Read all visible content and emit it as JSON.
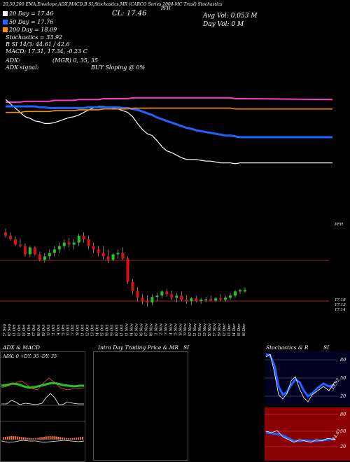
{
  "header": {
    "line1": "20,50,200  EMA,Envelope,ADX,MACD,B          SI,Stochastics,MR          (CARCO Series 2004-MC Trust) Stochastics",
    "ticker": "PFH",
    "close_label": "CL: 17.46",
    "avg_vol": "Avg Vol: 0.053  M",
    "day_vol": "Day Vol: 0  M",
    "ema20": "20  Day = 17.46",
    "ema50": "50  Day = 17.76",
    "ema200": "200  Day = 18.09",
    "stochastics": "Stochastics = 33.92",
    "rsi": "R          SI 14/3: 44.61 / 42.6",
    "macd": "MACD: 17.31, 17.34, -0.23  C",
    "adx": "ADX:",
    "mgr": "(MGR) 0,  35,  35",
    "adx_signal": "ADX  signal:",
    "buy_signal": "BUY Sloping @ 0%"
  },
  "colors": {
    "ema20": "#ffffff",
    "ema50": "#1e64ff",
    "ema200": "#ff8c00",
    "envelope": "#ff3cc8",
    "up": "#22c822",
    "down": "#dd1111",
    "level_line": "#aa2222"
  },
  "chart_data": [
    {
      "type": "line",
      "name": "moving-averages",
      "x": [
        "27 Sep",
        "30 Sep",
        "01 Oct",
        "02 Oct",
        "03 Oct",
        "04 Oct",
        "07 Oct",
        "08 Oct",
        "09 Oct",
        "10 Oct",
        "11 Oct",
        "14 Oct",
        "15 Oct",
        "16 Oct",
        "17 Oct",
        "18 Oct",
        "21 Oct",
        "22 Oct",
        "23 Oct",
        "24 Oct",
        "25 Oct",
        "28 Oct",
        "29 Oct",
        "30 Oct",
        "31 Oct",
        "01 Nov",
        "04 Nov",
        "05 Nov",
        "06 Nov",
        "07 Nov",
        "08 Nov",
        "11 Nov",
        "12 Nov",
        "13 Nov",
        "14 Nov",
        "15 Nov",
        "18 Nov",
        "19 Nov",
        "20 Nov",
        "21 Nov",
        "22 Nov",
        "25 Nov",
        "26 Nov",
        "27 Nov",
        "29 Nov",
        "02 Dec",
        "03 Dec",
        "04 Dec",
        "05 Dec",
        "06 Dec"
      ],
      "series": [
        {
          "name": "20 Day",
          "values": [
            18.2,
            18.15,
            18.1,
            18.05,
            18.0,
            17.98,
            17.95,
            17.94,
            17.92,
            17.92,
            17.93,
            17.95,
            17.97,
            17.99,
            18.0,
            18.02,
            18.05,
            18.08,
            18.1,
            18.12,
            18.12,
            18.11,
            18.1,
            18.09,
            18.07,
            18.05,
            18.0,
            17.92,
            17.85,
            17.8,
            17.78,
            17.72,
            17.65,
            17.6,
            17.58,
            17.55,
            17.52,
            17.5,
            17.5,
            17.5,
            17.49,
            17.48,
            17.48,
            17.47,
            17.46,
            17.46,
            17.46,
            17.45,
            17.46,
            17.46
          ]
        },
        {
          "name": "50 Day",
          "values": [
            18.12,
            18.12,
            18.12,
            18.12,
            18.12,
            18.12,
            18.12,
            18.11,
            18.11,
            18.1,
            18.1,
            18.1,
            18.1,
            18.1,
            18.1,
            18.1,
            18.1,
            18.11,
            18.11,
            18.11,
            18.11,
            18.11,
            18.11,
            18.11,
            18.1,
            18.1,
            18.09,
            18.08,
            18.06,
            18.04,
            18.02,
            17.99,
            17.97,
            17.95,
            17.93,
            17.91,
            17.89,
            17.87,
            17.86,
            17.84,
            17.83,
            17.82,
            17.81,
            17.8,
            17.79,
            17.78,
            17.78,
            17.77,
            17.76,
            17.76
          ]
        },
        {
          "name": "200 Day",
          "values": [
            18.05,
            18.05,
            18.05,
            18.05,
            18.06,
            18.06,
            18.06,
            18.06,
            18.06,
            18.06,
            18.07,
            18.07,
            18.07,
            18.07,
            18.07,
            18.08,
            18.08,
            18.08,
            18.08,
            18.08,
            18.09,
            18.09,
            18.09,
            18.09,
            18.09,
            18.09,
            18.1,
            18.1,
            18.1,
            18.1,
            18.1,
            18.1,
            18.1,
            18.1,
            18.1,
            18.1,
            18.1,
            18.1,
            18.1,
            18.1,
            18.1,
            18.1,
            18.1,
            18.1,
            18.1,
            18.1,
            18.1,
            18.09,
            18.09,
            18.09
          ]
        }
      ]
    },
    {
      "type": "bar",
      "name": "candlesticks",
      "x": [
        "27 Sep",
        "30 Sep",
        "01 Oct",
        "02 Oct",
        "03 Oct",
        "04 Oct",
        "07 Oct",
        "08 Oct",
        "09 Oct",
        "10 Oct",
        "11 Oct",
        "14 Oct",
        "15 Oct",
        "16 Oct",
        "17 Oct",
        "18 Oct",
        "21 Oct",
        "22 Oct",
        "23 Oct",
        "24 Oct",
        "25 Oct",
        "28 Oct",
        "29 Oct",
        "30 Oct",
        "31 Oct",
        "01 Nov",
        "04 Nov",
        "05 Nov",
        "06 Nov",
        "07 Nov",
        "08 Nov",
        "11 Nov",
        "12 Nov",
        "13 Nov",
        "14 Nov",
        "15 Nov",
        "18 Nov",
        "19 Nov",
        "20 Nov",
        "21 Nov",
        "22 Nov",
        "25 Nov",
        "26 Nov",
        "27 Nov",
        "29 Nov",
        "02 Dec",
        "03 Dec",
        "04 Dec",
        "05 Dec",
        "06 Dec"
      ],
      "ohlc": [
        [
          18.3,
          18.35,
          18.22,
          18.25
        ],
        [
          18.25,
          18.3,
          18.18,
          18.2
        ],
        [
          18.2,
          18.24,
          18.1,
          18.12
        ],
        [
          18.12,
          18.2,
          18.08,
          18.1
        ],
        [
          18.1,
          18.14,
          17.95,
          17.98
        ],
        [
          17.98,
          18.1,
          17.94,
          18.08
        ],
        [
          18.08,
          18.1,
          17.96,
          17.98
        ],
        [
          17.98,
          18.02,
          17.88,
          17.9
        ],
        [
          17.9,
          18.0,
          17.86,
          17.95
        ],
        [
          17.95,
          18.05,
          17.9,
          18.0
        ],
        [
          18.0,
          18.1,
          17.95,
          18.05
        ],
        [
          18.05,
          18.15,
          18.0,
          18.1
        ],
        [
          18.1,
          18.2,
          18.05,
          18.15
        ],
        [
          18.15,
          18.22,
          18.08,
          18.12
        ],
        [
          18.12,
          18.2,
          18.05,
          18.15
        ],
        [
          18.15,
          18.28,
          18.1,
          18.25
        ],
        [
          18.25,
          18.3,
          18.15,
          18.2
        ],
        [
          18.2,
          18.25,
          18.05,
          18.1
        ],
        [
          18.1,
          18.15,
          18.0,
          18.05
        ],
        [
          18.05,
          18.1,
          17.95,
          18.0
        ],
        [
          18.0,
          18.1,
          17.9,
          17.95
        ],
        [
          17.95,
          18.05,
          17.85,
          17.9
        ],
        [
          17.9,
          18.0,
          17.88,
          17.98
        ],
        [
          17.98,
          18.05,
          17.92,
          18.0
        ],
        [
          18.0,
          18.08,
          17.9,
          17.92
        ],
        [
          17.92,
          17.95,
          17.55,
          17.58
        ],
        [
          17.58,
          17.62,
          17.4,
          17.45
        ],
        [
          17.45,
          17.5,
          17.3,
          17.35
        ],
        [
          17.35,
          17.4,
          17.25,
          17.3
        ],
        [
          17.3,
          17.38,
          17.22,
          17.28
        ],
        [
          17.28,
          17.4,
          17.24,
          17.36
        ],
        [
          17.36,
          17.42,
          17.3,
          17.38
        ],
        [
          17.38,
          17.46,
          17.34,
          17.44
        ],
        [
          17.44,
          17.48,
          17.36,
          17.4
        ],
        [
          17.4,
          17.45,
          17.32,
          17.35
        ],
        [
          17.35,
          17.42,
          17.28,
          17.38
        ],
        [
          17.38,
          17.44,
          17.3,
          17.32
        ],
        [
          17.32,
          17.38,
          17.26,
          17.3
        ],
        [
          17.3,
          17.36,
          17.24,
          17.34
        ],
        [
          17.34,
          17.38,
          17.28,
          17.3
        ],
        [
          17.3,
          17.35,
          17.26,
          17.32
        ],
        [
          17.32,
          17.36,
          17.28,
          17.33
        ],
        [
          17.33,
          17.38,
          17.3,
          17.31
        ],
        [
          17.31,
          17.36,
          17.28,
          17.34
        ],
        [
          17.34,
          17.4,
          17.3,
          17.32
        ],
        [
          17.32,
          17.38,
          17.29,
          17.35
        ],
        [
          17.35,
          17.42,
          17.32,
          17.38
        ],
        [
          17.38,
          17.46,
          17.35,
          17.44
        ],
        [
          17.44,
          17.48,
          17.4,
          17.46
        ],
        [
          17.44,
          17.5,
          17.42,
          17.46
        ]
      ],
      "right_labels": [
        "PFH",
        "17.18",
        "17.13",
        "17.14"
      ]
    }
  ],
  "panels": {
    "adx_title": "ADX  & MACD",
    "adx_values": "ADX: 0   +DY: 35 -DY: 35",
    "intraday_title": "Intra Day Trading Price  & MR",
    "intraday_si": "SI",
    "stoch_title": "Stochastics & R",
    "stoch_si": "SI",
    "stoch_ticks": [
      "80",
      "50",
      "20"
    ],
    "rsi_ticks": [
      "80",
      "50",
      "20"
    ],
    "stoch_value_label": "33.92",
    "rsi_value_label": "44.61"
  }
}
